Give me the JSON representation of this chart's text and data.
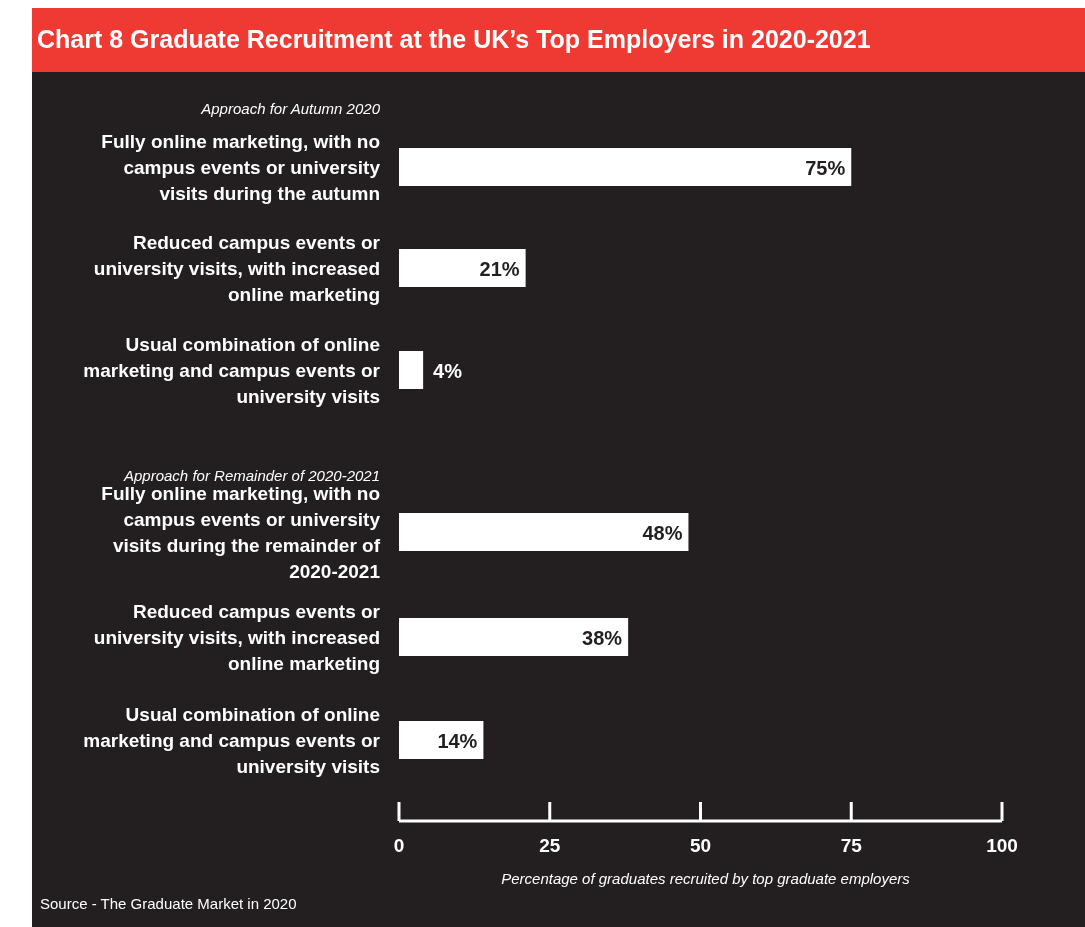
{
  "chart_data": [
    {
      "type": "bar",
      "orientation": "horizontal",
      "title": "Chart 8 Graduate Recruitment at the UK’s Top Employers in 2020-2021",
      "subtitle": "Approach for Autumn 2020",
      "categories": [
        "Fully online marketing, with no campus events or university visits during the autumn",
        "Reduced campus events or university visits, with increased online marketing",
        "Usual combination of online marketing and campus events or university visits"
      ],
      "values": [
        75,
        21,
        4
      ],
      "value_labels": [
        "75%",
        "21%",
        "4%"
      ],
      "color": "#ffffff",
      "xlim": [
        0,
        100
      ],
      "tick_labels": false
    },
    {
      "type": "bar",
      "orientation": "horizontal",
      "subtitle": "Approach for Remainder of 2020-2021",
      "categories": [
        "Fully online marketing, with no campus events or university visits during the remainder of 2020-2021",
        "Reduced campus events or university visits, with increased online marketing",
        "Usual combination of online marketing and campus events or university visits"
      ],
      "values": [
        48,
        38,
        14
      ],
      "value_labels": [
        "48%",
        "38%",
        "14%"
      ],
      "color": "#ffffff",
      "xlim": [
        0,
        100
      ],
      "xticks": [
        0,
        25,
        50,
        75,
        100
      ],
      "tick_labels": "x",
      "xlabel": "Percentage of graduates recruited by top graduate employers",
      "annotations": [
        "Source - The Graduate Market in 2020"
      ]
    }
  ]
}
